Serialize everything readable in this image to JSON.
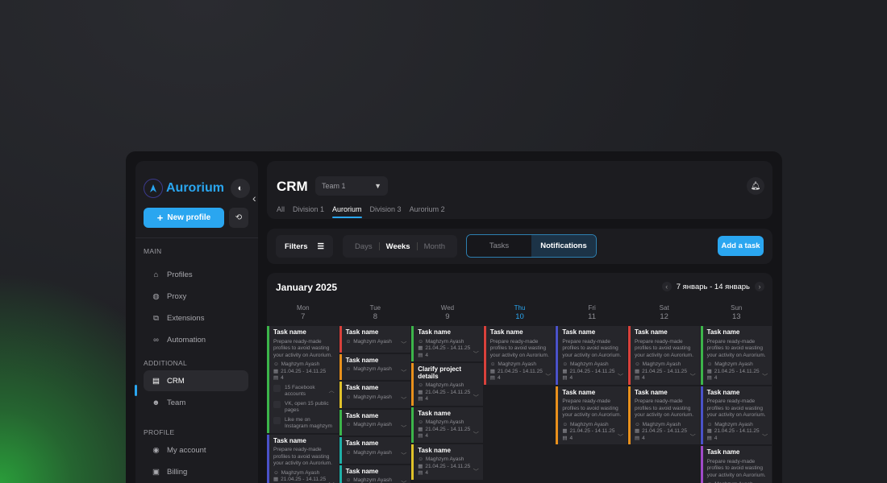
{
  "app": {
    "name": "Aurorium",
    "accent": "#2aa6f0"
  },
  "sidebar": {
    "new_profile": "New profile",
    "sections": {
      "main": "MAIN",
      "additional": "ADDITIONAL",
      "profile": "PROFILE"
    },
    "main_items": [
      {
        "label": "Profiles",
        "icon": "home-icon"
      },
      {
        "label": "Proxy",
        "icon": "globe-icon"
      },
      {
        "label": "Extensions",
        "icon": "puzzle-icon"
      },
      {
        "label": "Automation",
        "icon": "automation-icon"
      }
    ],
    "additional_items": [
      {
        "label": "CRM",
        "icon": "crm-icon",
        "active": true
      },
      {
        "label": "Team",
        "icon": "team-icon"
      }
    ],
    "profile_items": [
      {
        "label": "My account",
        "icon": "user-icon"
      },
      {
        "label": "Billing",
        "icon": "wallet-icon"
      }
    ]
  },
  "header": {
    "title": "CRM",
    "team_select": "Team 1",
    "tabs": [
      "All",
      "Division 1",
      "Aurorium",
      "Division 3",
      "Aurorium 2"
    ],
    "active_tab": "Aurorium"
  },
  "toolbar": {
    "filters": "Filters",
    "ranges": [
      "Days",
      "Weeks",
      "Month"
    ],
    "active_range": "Weeks",
    "segments": [
      "Tasks",
      "Notifications"
    ],
    "active_segment": "Notifications",
    "add_task": "Add a task"
  },
  "calendar": {
    "month": "January 2025",
    "week_range": "7 январь - 14 январь",
    "days": [
      {
        "name": "Mon",
        "num": "7"
      },
      {
        "name": "Tue",
        "num": "8"
      },
      {
        "name": "Wed",
        "num": "9"
      },
      {
        "name": "Thu",
        "num": "10",
        "today": true
      },
      {
        "name": "Fri",
        "num": "11"
      },
      {
        "name": "Sat",
        "num": "12"
      },
      {
        "name": "Sun",
        "num": "13"
      }
    ],
    "task": {
      "title": "Task name",
      "title_alt": "Clarify project details",
      "desc": "Prepare ready-made profiles to avoid wasting your activity on Aurorium.",
      "assignee": "Maghzym Ayash",
      "dates": "21.04.25 - 14.11.25",
      "count": "4"
    },
    "subtasks": [
      "15 Facebook accounts",
      "VK, open 15 public pages",
      "Like me on Instagram maghzym"
    ],
    "colors": {
      "green": "#3cb54a",
      "red": "#d9413b",
      "orange": "#e8901c",
      "yellow": "#e0c22a",
      "teal": "#1fb0a8",
      "blue": "#4a52c9",
      "purple": "#a04ac9"
    }
  }
}
